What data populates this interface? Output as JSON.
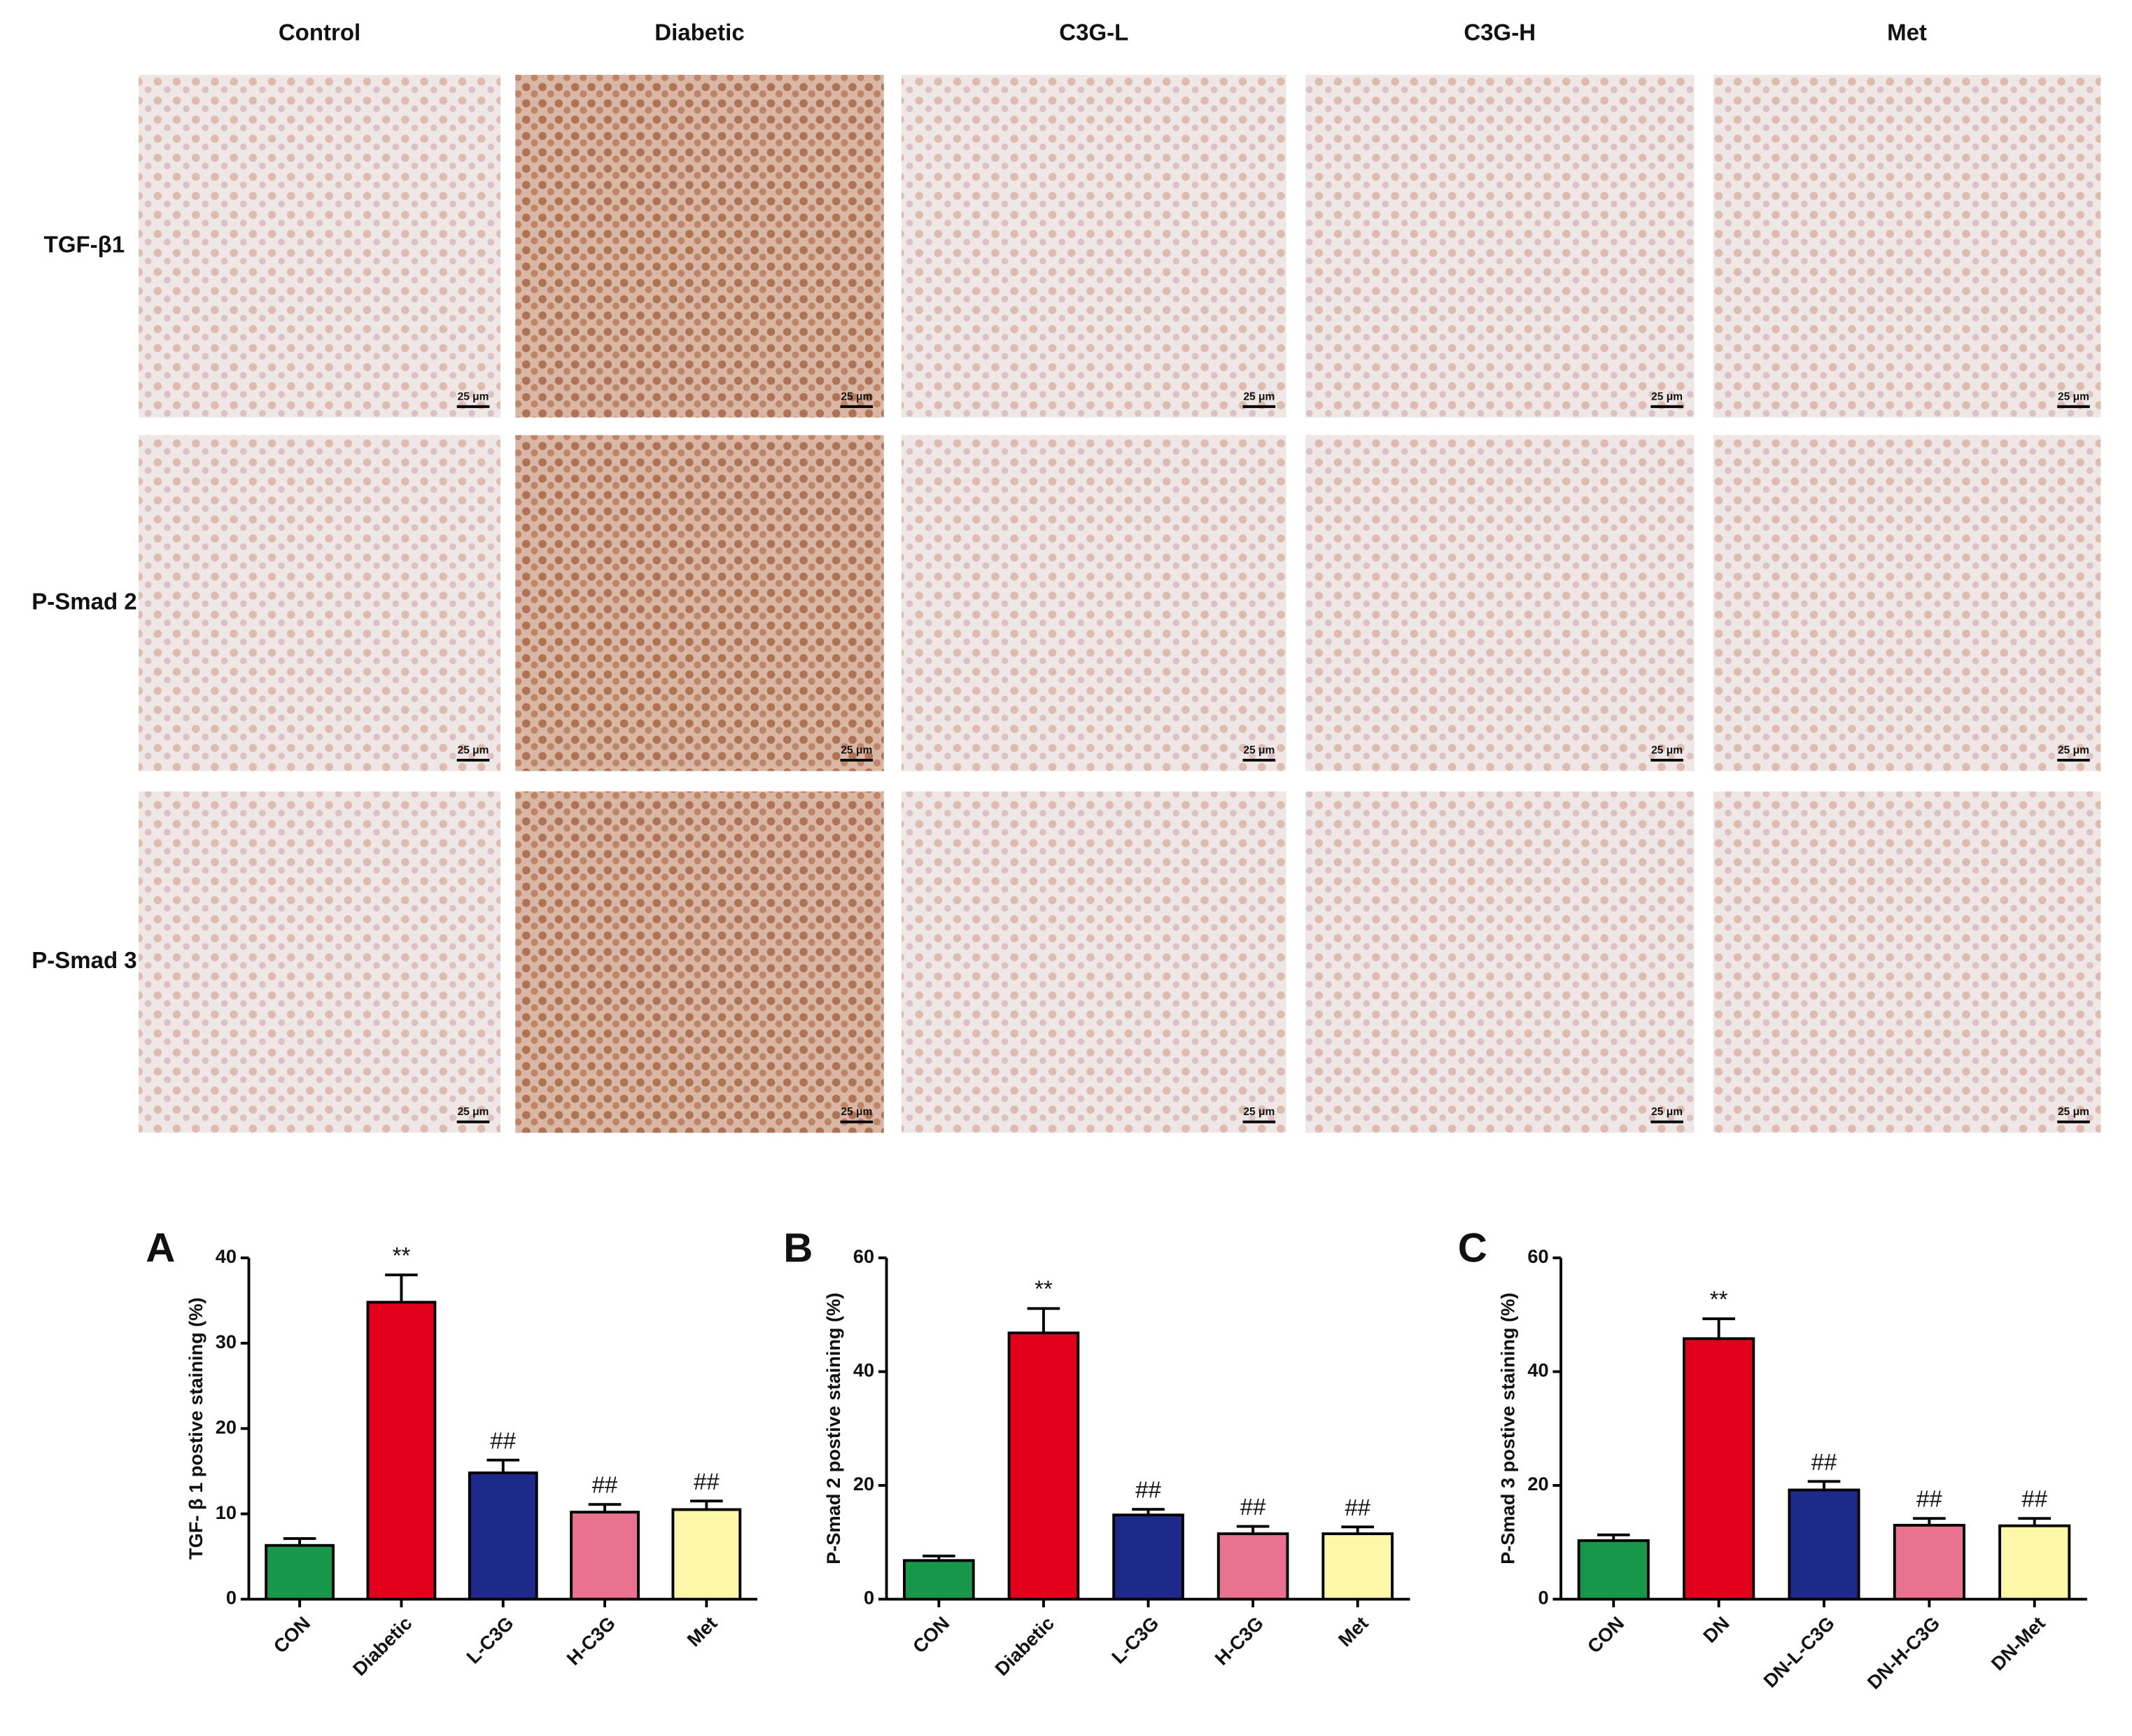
{
  "panel_grid": {
    "columns": [
      "Control",
      "Diabetic",
      "C3G-L",
      "C3G-H",
      "Met"
    ],
    "rows": [
      "TGF-β1",
      "P-Smad 2",
      "P-Smad 3"
    ],
    "scale_bar": "25 μm"
  },
  "chart_data": [
    {
      "type": "bar",
      "panel": "A",
      "ylabel": "TGF- β 1 postive staining (%)",
      "categories": [
        "CON",
        "Diabetic",
        "L-C3G",
        "H-C3G",
        "Met"
      ],
      "values": [
        6.3,
        34.8,
        14.8,
        10.2,
        10.5
      ],
      "errors": [
        0.8,
        3.2,
        1.5,
        0.9,
        1.0
      ],
      "colors": [
        "#16974a",
        "#e3001b",
        "#1d2a8a",
        "#e9738f",
        "#fdf8a9"
      ],
      "annotations": [
        {
          "index": 1,
          "text": "**"
        },
        {
          "index": 2,
          "text": "##"
        },
        {
          "index": 3,
          "text": "##"
        },
        {
          "index": 4,
          "text": "##"
        }
      ],
      "ylim": [
        0,
        40
      ],
      "yticks": [
        0,
        10,
        20,
        30,
        40
      ]
    },
    {
      "type": "bar",
      "panel": "B",
      "ylabel": "P-Smad 2 postive staining (%)",
      "categories": [
        "CON",
        "Diabetic",
        "L-C3G",
        "H-C3G",
        "Met"
      ],
      "values": [
        6.8,
        46.8,
        14.8,
        11.5,
        11.5
      ],
      "errors": [
        0.8,
        4.3,
        1.0,
        1.3,
        1.2
      ],
      "colors": [
        "#16974a",
        "#e3001b",
        "#1d2a8a",
        "#e9738f",
        "#fdf8a9"
      ],
      "annotations": [
        {
          "index": 1,
          "text": "**"
        },
        {
          "index": 2,
          "text": "##"
        },
        {
          "index": 3,
          "text": "##"
        },
        {
          "index": 4,
          "text": "##"
        }
      ],
      "ylim": [
        0,
        60
      ],
      "yticks": [
        0,
        20,
        40,
        60
      ]
    },
    {
      "type": "bar",
      "panel": "C",
      "ylabel": "P-Smad 3 postive staining (%)",
      "categories": [
        "CON",
        "DN",
        "DN-L-C3G",
        "DN-H-C3G",
        "DN-Met"
      ],
      "values": [
        10.3,
        45.8,
        19.2,
        13.0,
        12.9
      ],
      "errors": [
        1.0,
        3.5,
        1.5,
        1.2,
        1.3
      ],
      "colors": [
        "#16974a",
        "#e3001b",
        "#1d2a8a",
        "#e9738f",
        "#fdf8a9"
      ],
      "annotations": [
        {
          "index": 1,
          "text": "**"
        },
        {
          "index": 2,
          "text": "##"
        },
        {
          "index": 3,
          "text": "##"
        },
        {
          "index": 4,
          "text": "##"
        }
      ],
      "ylim": [
        0,
        60
      ],
      "yticks": [
        0,
        20,
        40,
        60
      ]
    }
  ]
}
